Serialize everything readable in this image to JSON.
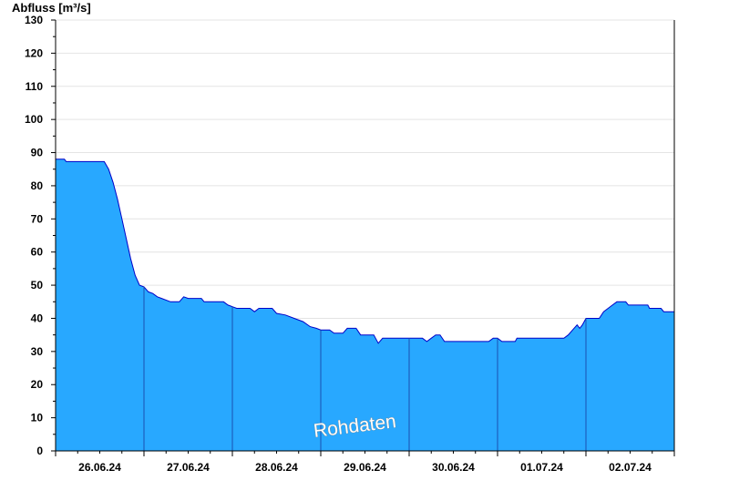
{
  "chart_data": {
    "type": "area",
    "title": "",
    "ylabel": "Abfluss [m³/s]",
    "xlabel": "",
    "ylim": [
      0,
      130
    ],
    "y_ticks": [
      0,
      10,
      20,
      30,
      40,
      50,
      60,
      70,
      80,
      90,
      100,
      110,
      120,
      130
    ],
    "grid": "horizontal",
    "x_range_days": [
      0,
      7
    ],
    "day_ticks": [
      {
        "pos": 0.5,
        "label": "26.06.24"
      },
      {
        "pos": 1.5,
        "label": "27.06.24"
      },
      {
        "pos": 2.5,
        "label": "28.06.24"
      },
      {
        "pos": 3.5,
        "label": "29.06.24"
      },
      {
        "pos": 4.5,
        "label": "30.06.24"
      },
      {
        "pos": 5.5,
        "label": "01.07.24"
      },
      {
        "pos": 6.5,
        "label": "02.07.24"
      }
    ],
    "day_boundaries": [
      1,
      2,
      3,
      4,
      5,
      6
    ],
    "fill_color": "#28a8ff",
    "line_color": "#0000c8",
    "annotation": "Rohdaten",
    "series": [
      {
        "name": "",
        "points": [
          [
            0.0,
            88
          ],
          [
            0.1,
            88
          ],
          [
            0.12,
            87.3
          ],
          [
            0.4,
            87.3
          ],
          [
            0.55,
            87.3
          ],
          [
            0.6,
            85
          ],
          [
            0.65,
            81
          ],
          [
            0.7,
            76
          ],
          [
            0.75,
            70
          ],
          [
            0.8,
            64
          ],
          [
            0.85,
            58
          ],
          [
            0.9,
            53
          ],
          [
            0.95,
            50
          ],
          [
            1.0,
            49.5
          ],
          [
            1.05,
            48
          ],
          [
            1.1,
            47.5
          ],
          [
            1.15,
            46.5
          ],
          [
            1.2,
            46
          ],
          [
            1.3,
            45
          ],
          [
            1.4,
            45
          ],
          [
            1.45,
            46.5
          ],
          [
            1.5,
            46
          ],
          [
            1.65,
            46
          ],
          [
            1.68,
            45
          ],
          [
            1.9,
            45
          ],
          [
            1.95,
            44
          ],
          [
            2.0,
            43.5
          ],
          [
            2.05,
            43
          ],
          [
            2.2,
            43
          ],
          [
            2.25,
            42
          ],
          [
            2.3,
            43
          ],
          [
            2.45,
            43
          ],
          [
            2.5,
            41.5
          ],
          [
            2.6,
            41
          ],
          [
            2.7,
            40
          ],
          [
            2.8,
            39
          ],
          [
            2.88,
            37.5
          ],
          [
            2.95,
            37
          ],
          [
            3.0,
            36.5
          ],
          [
            3.1,
            36.5
          ],
          [
            3.15,
            35.5
          ],
          [
            3.25,
            35.5
          ],
          [
            3.3,
            37
          ],
          [
            3.4,
            37
          ],
          [
            3.45,
            35
          ],
          [
            3.6,
            35
          ],
          [
            3.65,
            32.5
          ],
          [
            3.7,
            34
          ],
          [
            4.0,
            34
          ],
          [
            4.15,
            34
          ],
          [
            4.2,
            33
          ],
          [
            4.25,
            34
          ],
          [
            4.3,
            35
          ],
          [
            4.35,
            35
          ],
          [
            4.4,
            33
          ],
          [
            4.6,
            33
          ],
          [
            4.9,
            33
          ],
          [
            4.95,
            34
          ],
          [
            5.0,
            34
          ],
          [
            5.05,
            33
          ],
          [
            5.2,
            33
          ],
          [
            5.22,
            34
          ],
          [
            5.5,
            34
          ],
          [
            5.75,
            34
          ],
          [
            5.8,
            35
          ],
          [
            5.85,
            36.5
          ],
          [
            5.9,
            38
          ],
          [
            5.93,
            37
          ],
          [
            5.96,
            38
          ],
          [
            6.0,
            40
          ],
          [
            6.15,
            40
          ],
          [
            6.2,
            42
          ],
          [
            6.25,
            43
          ],
          [
            6.3,
            44
          ],
          [
            6.35,
            45
          ],
          [
            6.45,
            45
          ],
          [
            6.48,
            44
          ],
          [
            6.7,
            44
          ],
          [
            6.72,
            43
          ],
          [
            6.85,
            43
          ],
          [
            6.88,
            42
          ],
          [
            7.0,
            42
          ]
        ]
      }
    ]
  }
}
